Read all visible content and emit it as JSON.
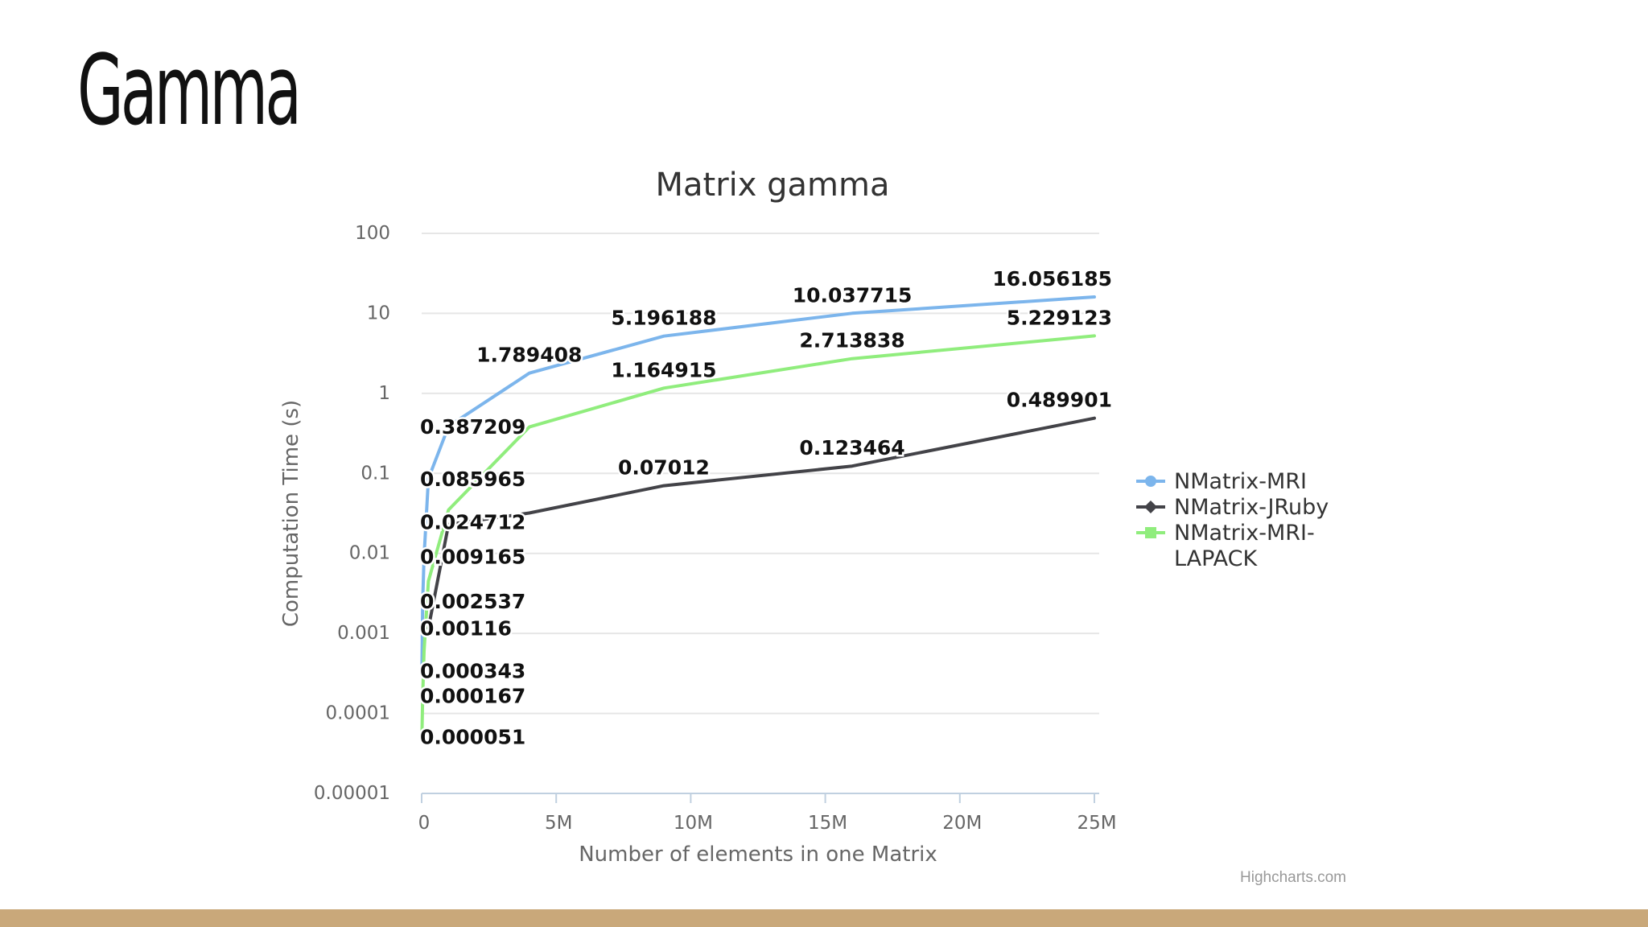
{
  "slide": {
    "title": "Gamma",
    "footer_bar_color": "#c9a87a",
    "credit": "Highcharts.com"
  },
  "chart_data": {
    "type": "line",
    "title": "Matrix gamma",
    "xlabel": "Number of elements in one Matrix",
    "ylabel": "Computation Time (s)",
    "xlim": [
      0,
      25000000
    ],
    "ylim": [
      1e-05,
      100
    ],
    "y_scale": "log",
    "x_ticks": [
      0,
      5000000,
      10000000,
      15000000,
      20000000,
      25000000
    ],
    "x_tick_labels": [
      "0",
      "5M",
      "10M",
      "15M",
      "20M",
      "25M"
    ],
    "y_ticks": [
      1e-05,
      0.0001,
      0.001,
      0.01,
      0.1,
      1,
      10,
      100
    ],
    "y_tick_labels": [
      "0.00001",
      "0.0001",
      "0.001",
      "0.01",
      "0.1",
      "1",
      "10",
      "100"
    ],
    "grid": true,
    "legend": "right",
    "series": [
      {
        "name": "NMatrix-MRI",
        "color": "#7cb5ec",
        "marker": "circle",
        "x": [
          10000,
          40000,
          90000,
          160000,
          250000,
          1000000,
          4000000,
          9000000,
          16000000,
          25000000
        ],
        "y": [
          0.000343,
          0.002537,
          0.009165,
          0.024712,
          0.085965,
          0.387209,
          1.789408,
          5.196188,
          10.037715,
          16.056185
        ]
      },
      {
        "name": "NMatrix-JRuby",
        "color": "#434348",
        "marker": "diamond",
        "x": [
          250000,
          1000000,
          4000000,
          9000000,
          16000000,
          25000000
        ],
        "y": [
          0.00116,
          0.023,
          0.032,
          0.07012,
          0.123464,
          0.489901
        ]
      },
      {
        "name": "NMatrix-MRI-LAPACK",
        "legend_lines": [
          "NMatrix-MRI-",
          "LAPACK"
        ],
        "color": "#90ed7d",
        "marker": "square",
        "x": [
          10000,
          40000,
          90000,
          160000,
          250000,
          1000000,
          4000000,
          9000000,
          16000000,
          25000000
        ],
        "y": [
          5.1e-05,
          0.000167,
          0.0006,
          0.0015,
          0.0045,
          0.035,
          0.38,
          1.164915,
          2.713838,
          5.229123
        ]
      }
    ],
    "data_labels": [
      {
        "text": "16.056185",
        "x": 25000000,
        "y": 16.056185
      },
      {
        "text": "10.037715",
        "x": 16000000,
        "y": 10.037715
      },
      {
        "text": "5.196188",
        "x": 9000000,
        "y": 5.196188
      },
      {
        "text": "1.789408",
        "x": 4000000,
        "y": 1.789408
      },
      {
        "text": "5.229123",
        "x": 25000000,
        "y": 5.229123
      },
      {
        "text": "2.713838",
        "x": 16000000,
        "y": 2.713838
      },
      {
        "text": "1.164915",
        "x": 9000000,
        "y": 1.164915
      },
      {
        "text": "0.387209",
        "x": 1000000,
        "y": 0.387209
      },
      {
        "text": "0.489901",
        "x": 25000000,
        "y": 0.489901
      },
      {
        "text": "0.123464",
        "x": 16000000,
        "y": 0.123464
      },
      {
        "text": "0.07012",
        "x": 9000000,
        "y": 0.07012
      },
      {
        "text": "0.085965",
        "x": 250000,
        "y": 0.085965
      },
      {
        "text": "0.024712",
        "x": 160000,
        "y": 0.024712
      },
      {
        "text": "0.009165",
        "x": 90000,
        "y": 0.009165
      },
      {
        "text": "0.002537",
        "x": 40000,
        "y": 0.002537
      },
      {
        "text": "0.00116",
        "x": 250000,
        "y": 0.00116
      },
      {
        "text": "0.000343",
        "x": 10000,
        "y": 0.000343
      },
      {
        "text": "0.000167",
        "x": 40000,
        "y": 0.000167
      },
      {
        "text": "0.000051",
        "x": 10000,
        "y": 5.1e-05
      }
    ]
  }
}
